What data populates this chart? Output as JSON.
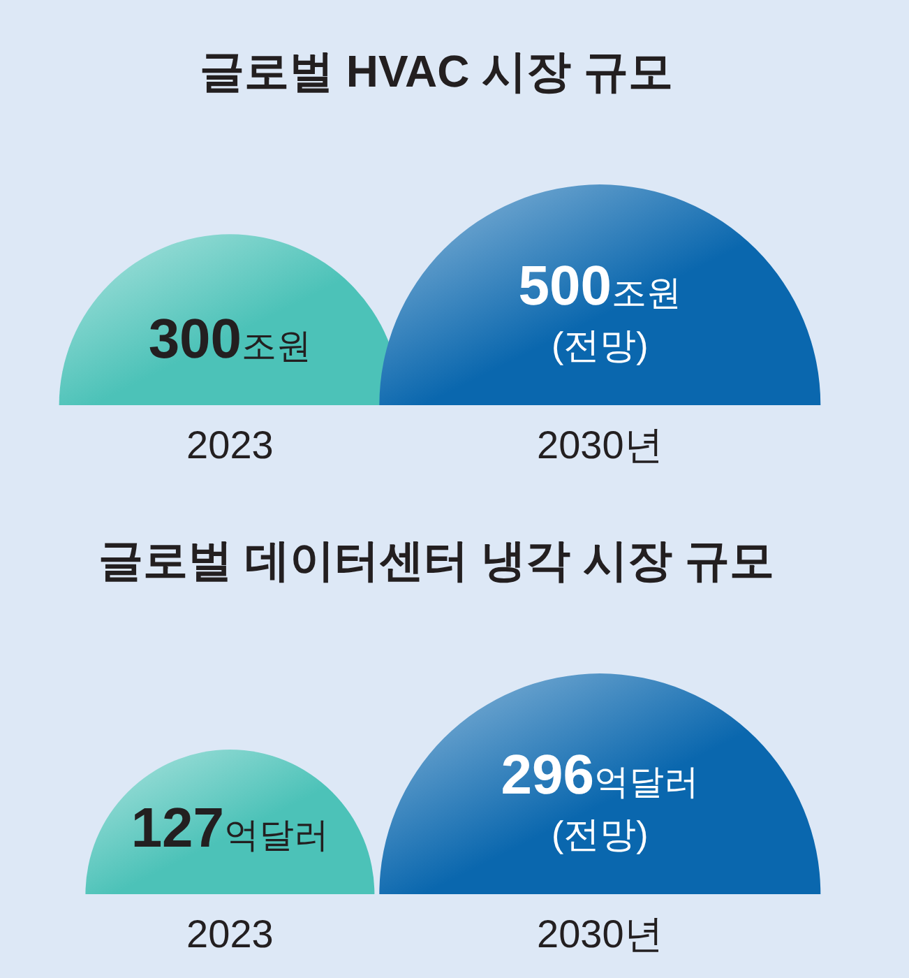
{
  "chart_data": [
    {
      "type": "other",
      "title": "글로벌 HVAC 시장 규모",
      "categories": [
        "2023",
        "2030년"
      ],
      "values": [
        300,
        500
      ],
      "value_labels": [
        "300조원",
        "500조원\n(전망)"
      ],
      "colors": [
        "#4cc2b8",
        "#0a67ae"
      ]
    },
    {
      "type": "other",
      "title": "글로벌 데이터센터 냉각 시장 규모",
      "categories": [
        "2023",
        "2030년"
      ],
      "values": [
        127,
        296
      ],
      "value_labels": [
        "127억달러",
        "296억달러\n(전망)"
      ],
      "colors": [
        "#4cc2b8",
        "#0a67ae"
      ]
    }
  ]
}
